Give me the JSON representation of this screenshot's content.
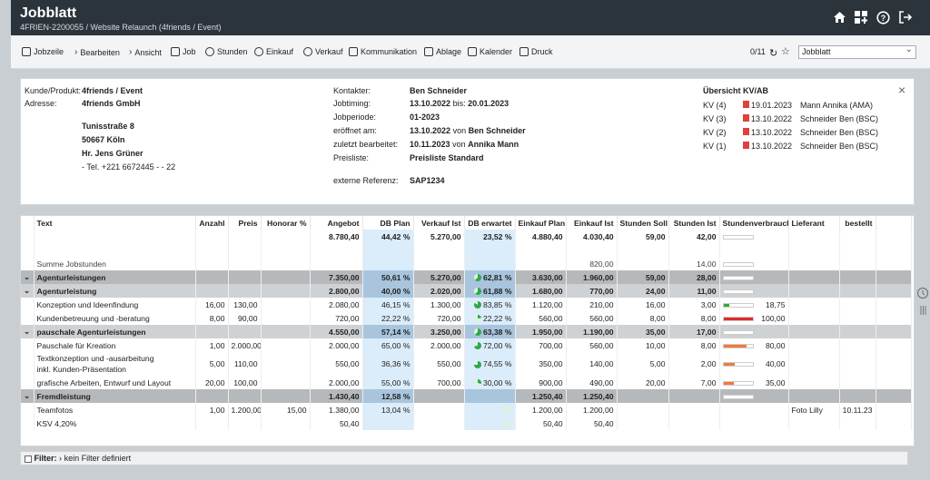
{
  "header": {
    "title": "Jobblatt",
    "subtitle": "4FRIEN-2200055 / Website Relaunch (4friends / Event)"
  },
  "toolbar": {
    "items": [
      "Jobzeile",
      "Bearbeiten",
      "Ansicht",
      "Job",
      "Stunden",
      "Einkauf",
      "Verkauf",
      "Kommunikation",
      "Ablage",
      "Kalender",
      "Druck"
    ],
    "pager": "0/11",
    "select": "Jobblatt"
  },
  "info": {
    "kunde_label": "Kunde/Produkt:",
    "kunde": "4friends / Event",
    "adresse_label": "Adresse:",
    "adresse": "4friends GmbH",
    "strasse": "Tunisstraße 8",
    "ort": "50667 Köln",
    "person": "Hr. Jens Grüner",
    "tel": "- Tel. +221 6672445 - - 22",
    "kontakter_label": "Kontakter:",
    "kontakter": "Ben Schneider",
    "jobtiming_label": "Jobtiming:",
    "jobtiming_from": "13.10.2022",
    "jobtiming_mid": "bis:",
    "jobtiming_to": "20.01.2023",
    "periode_label": "Jobperiode:",
    "periode": "01-2023",
    "eroeffnet_label": "eröffnet am:",
    "eroeffnet": "13.10.2022",
    "eroeffnet_von": "von",
    "eroeffnet_by": "Ben Schneider",
    "bearb_label": "zuletzt bearbeitet:",
    "bearb": "10.11.2023",
    "bearb_von": "von",
    "bearb_by": "Annika Mann",
    "preis_label": "Preisliste:",
    "preis": "Preisliste Standard",
    "ref_label": "externe Referenz:",
    "ref": "SAP1234",
    "kv_title": "Übersicht KV/AB",
    "kv": [
      {
        "k": "KV (4)",
        "d": "19.01.2023",
        "n": "Mann Annika (AMA)"
      },
      {
        "k": "KV (3)",
        "d": "13.10.2022",
        "n": "Schneider Ben (BSC)"
      },
      {
        "k": "KV (2)",
        "d": "13.10.2022",
        "n": "Schneider Ben (BSC)"
      },
      {
        "k": "KV (1)",
        "d": "13.10.2022",
        "n": "Schneider Ben (BSC)"
      }
    ]
  },
  "table": {
    "headers": [
      "Text",
      "Anzahl",
      "Preis",
      "Honorar %",
      "Angebot",
      "DB Plan",
      "Verkauf Ist",
      "DB erwartet",
      "Einkauf Plan",
      "Einkauf Ist",
      "Stunden Soll",
      "Stunden Ist",
      "Stundenverbrauch",
      "Lieferant",
      "bestellt"
    ],
    "rows": [
      {
        "cls": "row-tot",
        "c": [
          "",
          "",
          "",
          "",
          "8.780,40",
          "44,42 %",
          "5.270,00",
          "23,52 %",
          "4.880,40",
          "4.030,40",
          "59,00",
          "42,00",
          "",
          "",
          ""
        ],
        "bar": 0,
        "barc": "",
        "pie": -1
      },
      {
        "cls": "row-w",
        "c": [
          "",
          "",
          "",
          "",
          "",
          "",
          "",
          "",
          "",
          "",
          "",
          "",
          "",
          "",
          ""
        ],
        "bar": -1,
        "barc": "",
        "pie": -1
      },
      {
        "cls": "row-sum",
        "c": [
          "Summe Jobstunden",
          "",
          "",
          "",
          "",
          "",
          "",
          "",
          "",
          "820,00",
          "",
          "14,00",
          "",
          "",
          ""
        ],
        "bar": 0,
        "barc": "",
        "pie": -1
      },
      {
        "cls": "row-g1",
        "c": [
          "Agenturleistungen",
          "",
          "",
          "",
          "7.350,00",
          "50,61 %",
          "5.270,00",
          "62,81 %",
          "3.630,00",
          "1.960,00",
          "59,00",
          "28,00",
          "",
          "",
          ""
        ],
        "bar": 0,
        "barc": "",
        "pie": 0.63,
        "caret": true
      },
      {
        "cls": "row-g2",
        "c": [
          "Agenturleistung",
          "",
          "",
          "",
          "2.800,00",
          "40,00 %",
          "2.020,00",
          "61,88 %",
          "1.680,00",
          "770,00",
          "24,00",
          "11,00",
          "",
          "",
          ""
        ],
        "bar": 0,
        "barc": "",
        "pie": 0.62,
        "caret": true
      },
      {
        "cls": "row-w",
        "c": [
          "Konzeption und Ideenfindung",
          "16,00",
          "130,00",
          "",
          "2.080,00",
          "46,15 %",
          "1.300,00",
          "83,85 %",
          "1.120,00",
          "210,00",
          "16,00",
          "3,00",
          "18,75",
          "",
          ""
        ],
        "bar": 0.19,
        "barc": "#2eaa3a",
        "pie": 0.84
      },
      {
        "cls": "row-w",
        "c": [
          "Kundenbetreuung und -beratung",
          "8,00",
          "90,00",
          "",
          "720,00",
          "22,22 %",
          "720,00",
          "22,22 %",
          "560,00",
          "560,00",
          "8,00",
          "8,00",
          "100,00",
          "",
          ""
        ],
        "bar": 1,
        "barc": "#e02a2a",
        "pie": 0.22
      },
      {
        "cls": "row-g2",
        "c": [
          "pauschale Agenturleistungen",
          "",
          "",
          "",
          "4.550,00",
          "57,14 %",
          "3.250,00",
          "63,38 %",
          "1.950,00",
          "1.190,00",
          "35,00",
          "17,00",
          "",
          "",
          ""
        ],
        "bar": 0,
        "barc": "",
        "pie": 0.63,
        "caret": true
      },
      {
        "cls": "row-w",
        "c": [
          "Pauschale für Kreation",
          "1,00",
          "2.000,00",
          "",
          "2.000,00",
          "65,00 %",
          "2.000,00",
          "72,00 %",
          "700,00",
          "560,00",
          "10,00",
          "8,00",
          "80,00",
          "",
          ""
        ],
        "bar": 0.8,
        "barc": "#f07a3c",
        "pie": 0.72
      },
      {
        "cls": "row-w",
        "c": [
          "Textkonzeption und -ausarbeitung",
          "5,00",
          "110,00",
          "",
          "550,00",
          "36,36 %",
          "550,00",
          "74,55 %",
          "350,00",
          "140,00",
          "5,00",
          "2,00",
          "40,00",
          "",
          ""
        ],
        "bar": 0.4,
        "barc": "#f07a3c",
        "pie": 0.75,
        "sub": "inkl. Kunden-Präsentation"
      },
      {
        "cls": "row-w",
        "c": [
          "grafische Arbeiten, Entwurf und Layout",
          "20,00",
          "100,00",
          "",
          "2.000,00",
          "55,00 %",
          "700,00",
          "30,00 %",
          "900,00",
          "490,00",
          "20,00",
          "7,00",
          "35,00",
          "",
          ""
        ],
        "bar": 0.35,
        "barc": "#f07a3c",
        "pie": 0.3
      },
      {
        "cls": "row-g1",
        "c": [
          "Fremdleistung",
          "",
          "",
          "",
          "1.430,40",
          "12,58 %",
          "",
          "",
          "1.250,40",
          "1.250,40",
          "",
          "",
          "",
          "",
          ""
        ],
        "bar": 0,
        "barc": "",
        "pie": -1,
        "caret": true
      },
      {
        "cls": "row-w",
        "c": [
          "Teamfotos",
          "1,00",
          "1.200,00",
          "15,00",
          "1.380,00",
          "13,04 %",
          "",
          "",
          "1.200,00",
          "1.200,00",
          "",
          "",
          "",
          "Foto Lilly",
          "10.11.23"
        ],
        "bar": -1,
        "barc": "",
        "pie": 0
      },
      {
        "cls": "row-w",
        "c": [
          "KSV 4,20%",
          "",
          "",
          "",
          "50,40",
          "",
          "",
          "",
          "50,40",
          "50,40",
          "",
          "",
          "",
          "",
          ""
        ],
        "bar": -1,
        "barc": "",
        "pie": 0
      }
    ]
  },
  "filter": {
    "label": "Filter:",
    "value": "kein Filter definiert"
  }
}
